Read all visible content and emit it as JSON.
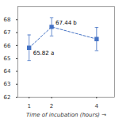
{
  "chart_data": {
    "type": "line",
    "x": [
      1,
      2,
      4
    ],
    "values": [
      65.82,
      67.44,
      66.5
    ],
    "yerr": [
      1.0,
      0.7,
      0.9
    ],
    "color": "#4472c4",
    "marker": "square",
    "line_style": "dashed",
    "xlabel": "Time of incubation (hours)",
    "xlim": [
      0.5,
      4.8
    ],
    "xticks": [
      1,
      2,
      4
    ],
    "ylim": [
      62,
      69
    ],
    "yticks": [
      62,
      63,
      64,
      65,
      66,
      67,
      68
    ],
    "annotations": [
      {
        "text": "65.82 a",
        "x": 1,
        "y": 65.82
      },
      {
        "text": "67.44 b",
        "x": 2,
        "y": 67.44
      }
    ],
    "grid": false
  }
}
